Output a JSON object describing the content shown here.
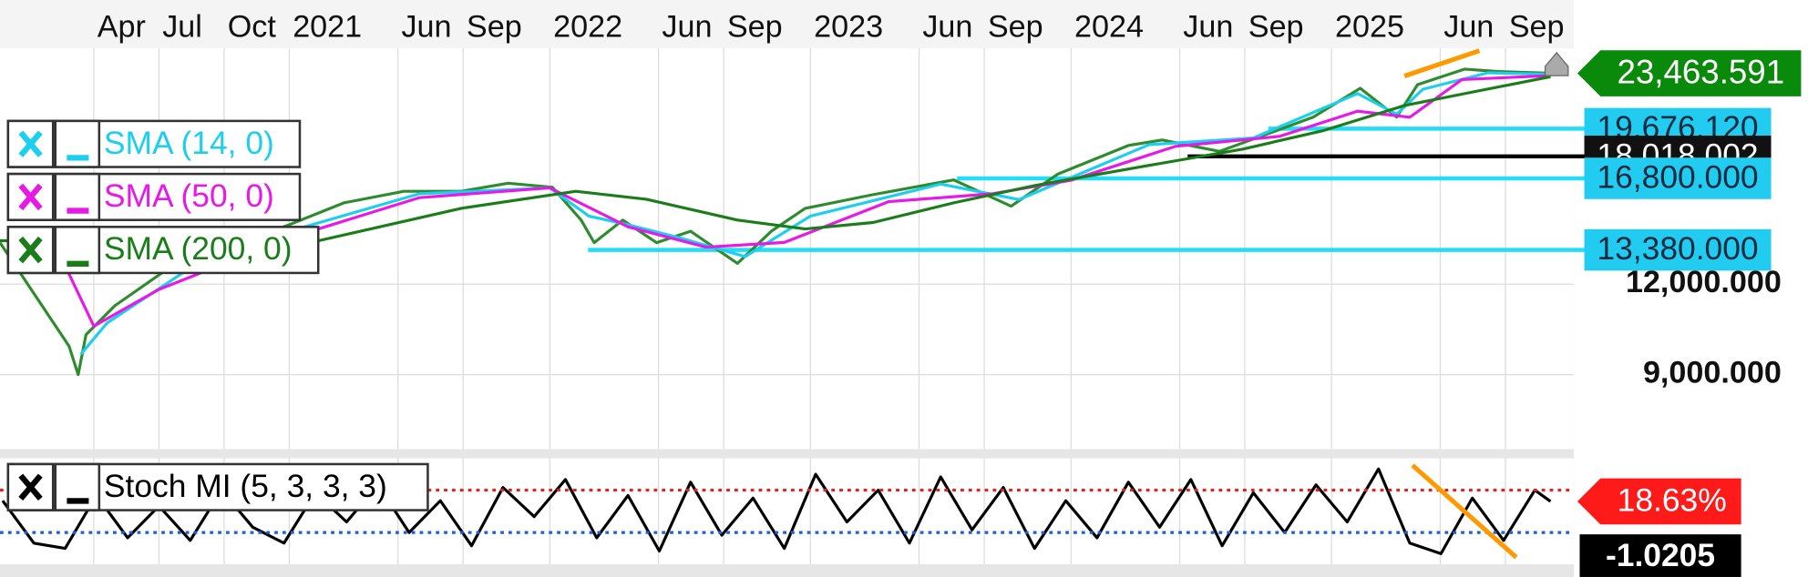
{
  "chart_data": [
    {
      "type": "line",
      "log_scale": true,
      "grid": true,
      "xlim": [
        2019.89,
        2025.93
      ],
      "ylim": [
        7100,
        25400
      ],
      "xticks": [
        {
          "value": 2020.25,
          "label": "Apr"
        },
        {
          "value": 2020.5,
          "label": "Jul"
        },
        {
          "value": 2020.75,
          "label": "Oct"
        },
        2021,
        {
          "value": 2021.417,
          "label": "Jun"
        },
        {
          "value": 2021.667,
          "label": "Sep"
        },
        2022,
        {
          "value": 2022.417,
          "label": "Jun"
        },
        {
          "value": 2022.667,
          "label": "Sep"
        },
        2023,
        {
          "value": 2023.417,
          "label": "Jun"
        },
        {
          "value": 2023.667,
          "label": "Sep"
        },
        2024,
        {
          "value": 2024.417,
          "label": "Jun"
        },
        {
          "value": 2024.667,
          "label": "Sep"
        },
        2025,
        {
          "value": 2025.417,
          "label": "Jun"
        },
        {
          "value": 2025.667,
          "label": "Sep"
        }
      ],
      "yticks": [
        {
          "value": 9000,
          "label": "9,000.000"
        },
        {
          "value": 12000,
          "label": "12,000.000"
        }
      ],
      "series": [
        {
          "color": "#2e8b2e",
          "x": [
            2019.89,
            2020.155,
            2020.19,
            2020.22,
            2020.33,
            2020.55,
            2020.99,
            2021.21,
            2021.44,
            2021.66,
            2021.84,
            2022.01,
            2022.12,
            2022.17,
            2022.28,
            2022.41,
            2022.54,
            2022.72,
            2022.85,
            2022.98,
            2023.24,
            2023.55,
            2023.77,
            2023.95,
            2024.22,
            2024.35,
            2024.57,
            2024.75,
            2024.93,
            2025.11,
            2025.25,
            2025.33,
            2025.51,
            2025.64,
            2025.84
          ],
          "values": [
            13690,
            9850,
            9000,
            10220,
            11200,
            12720,
            14450,
            15540,
            16120,
            16120,
            16540,
            16330,
            14710,
            13690,
            14710,
            13690,
            14200,
            12820,
            14200,
            15270,
            15950,
            16720,
            15380,
            17030,
            18650,
            18980,
            18310,
            19330,
            20420,
            22380,
            20420,
            22630,
            23780,
            23600,
            23463.591
          ]
        },
        {
          "name": "SMA (14, 0)",
          "color": "#1ccfee",
          "x": [
            2020.2,
            2020.3,
            2020.6,
            2021.0,
            2021.5,
            2022.0,
            2022.15,
            2022.3,
            2022.5,
            2022.75,
            2023.0,
            2023.5,
            2023.8,
            2024.3,
            2024.7,
            2025.1,
            2025.25,
            2025.35,
            2025.6,
            2025.84
          ],
          "values": [
            9600,
            10600,
            12500,
            14200,
            16000,
            16300,
            14900,
            14500,
            13900,
            13100,
            14900,
            16500,
            15700,
            18700,
            19100,
            22000,
            20600,
            22300,
            23500,
            23400
          ]
        },
        {
          "name": "SMA (50, 0)",
          "color": "#e619e6",
          "x": [
            2020.15,
            2020.25,
            2020.5,
            2021.0,
            2021.5,
            2022.0,
            2022.3,
            2022.6,
            2022.9,
            2023.3,
            2023.7,
            2024.0,
            2024.4,
            2024.8,
            2025.1,
            2025.3,
            2025.5,
            2025.84
          ],
          "values": [
            12500,
            10500,
            11800,
            13900,
            15800,
            16300,
            14400,
            13500,
            13700,
            15600,
            16000,
            16700,
            18600,
            19200,
            20800,
            20400,
            23000,
            23300
          ]
        },
        {
          "name": "SMA (200, 0)",
          "color": "#1a7d1a",
          "x": [
            2019.89,
            2021.08,
            2021.66,
            2022.1,
            2022.37,
            2022.72,
            2022.98,
            2023.24,
            2023.55,
            2023.86,
            2024.31,
            2024.66,
            2024.97,
            2025.28,
            2025.55,
            2025.84
          ],
          "values": [
            13780,
            13690,
            15270,
            16120,
            15720,
            14710,
            14300,
            14600,
            15540,
            16420,
            17530,
            18440,
            19560,
            21180,
            22140,
            23210
          ]
        }
      ],
      "levels": [
        {
          "value": 19676.12,
          "label": "19,676.120",
          "color": "#22ddf5"
        },
        {
          "value": 18018.002,
          "label": "18,018.002",
          "color": "#000000"
        },
        {
          "value": 16800,
          "label": "16,800.000",
          "color": "#22ddf5"
        },
        {
          "value": 13380,
          "label": "13,380.000",
          "color": "#22ddf5"
        }
      ],
      "last_price": {
        "value": 23463.591,
        "label": "23,463.591",
        "color": "#0a8a0a"
      }
    },
    {
      "type": "line",
      "ylim": [
        -100,
        100
      ],
      "series": [
        {
          "name": "Stoch MI (5, 3, 3, 3)",
          "color": "#000000",
          "x": [
            2019.9,
            2020.02,
            2020.14,
            2020.26,
            2020.38,
            2020.5,
            2020.62,
            2020.74,
            2020.86,
            2020.98,
            2021.1,
            2021.22,
            2021.34,
            2021.46,
            2021.58,
            2021.7,
            2021.82,
            2021.94,
            2022.06,
            2022.18,
            2022.3,
            2022.42,
            2022.54,
            2022.66,
            2022.78,
            2022.9,
            2023.02,
            2023.14,
            2023.26,
            2023.38,
            2023.5,
            2023.62,
            2023.74,
            2023.86,
            2023.98,
            2024.1,
            2024.22,
            2024.34,
            2024.46,
            2024.58,
            2024.7,
            2024.82,
            2024.94,
            2025.06,
            2025.18,
            2025.3,
            2025.42,
            2025.54,
            2025.66,
            2025.78,
            2025.84
          ],
          "values": [
            20,
            -60,
            -70,
            30,
            -50,
            10,
            -55,
            40,
            -30,
            -60,
            35,
            -20,
            50,
            -40,
            20,
            -65,
            45,
            -10,
            60,
            -50,
            30,
            -75,
            55,
            -45,
            25,
            -70,
            70,
            -20,
            40,
            -60,
            65,
            -35,
            45,
            -70,
            20,
            -50,
            55,
            -30,
            60,
            -65,
            35,
            -40,
            50,
            -20,
            80,
            -60,
            -80,
            25,
            -55,
            40,
            18.63
          ]
        }
      ],
      "levels": [
        {
          "value": 40,
          "color": "#e82020"
        },
        {
          "value": -40,
          "color": "#1e5fe0"
        }
      ],
      "tag": {
        "value": 18.63,
        "label": "18.63%",
        "color": "#ff1a1a"
      },
      "readout": "-1.0205"
    }
  ]
}
